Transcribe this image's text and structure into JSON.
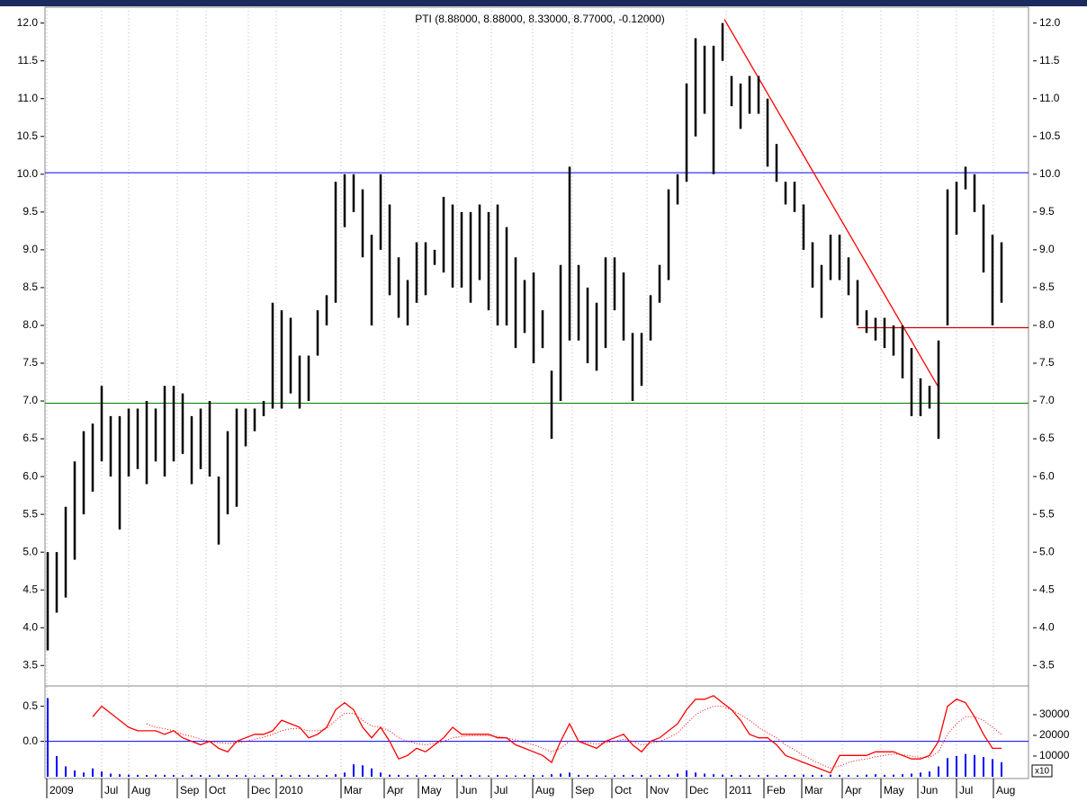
{
  "chart_data": [
    {
      "type": "ohlc",
      "title": "PTI (8.88000, 8.88000, 8.33000, 8.77000, -0.12000)",
      "high": [
        5.0,
        5.0,
        5.6,
        6.2,
        6.6,
        6.7,
        7.2,
        6.8,
        6.8,
        6.9,
        6.9,
        7.0,
        6.9,
        7.2,
        7.2,
        7.1,
        6.8,
        6.9,
        7.0,
        6.0,
        6.6,
        6.9,
        6.9,
        6.9,
        7.0,
        8.3,
        8.2,
        8.1,
        7.6,
        7.6,
        8.2,
        8.4,
        9.9,
        10.0,
        10.0,
        9.8,
        9.2,
        10.0,
        9.6,
        8.9,
        8.6,
        9.1,
        9.1,
        9.0,
        9.7,
        9.6,
        9.5,
        9.5,
        9.6,
        9.5,
        9.6,
        9.3,
        8.9,
        8.6,
        8.7,
        8.2,
        7.4,
        8.8,
        10.1,
        8.8,
        8.5,
        8.3,
        8.9,
        8.9,
        8.7,
        7.9,
        7.9,
        8.4,
        8.8,
        9.8,
        10.0,
        11.2,
        11.8,
        11.7,
        11.7,
        12.0,
        11.3,
        11.2,
        11.3,
        11.3,
        11.0,
        10.4,
        9.9,
        9.9,
        9.6,
        9.1,
        8.8,
        9.2,
        9.2,
        8.9,
        8.6,
        8.2,
        8.1,
        8.1,
        8.0,
        8.0,
        7.7,
        7.3,
        7.2,
        7.8,
        9.8,
        9.9,
        10.1,
        10.0,
        9.6,
        9.2,
        9.1
      ],
      "low": [
        3.7,
        4.2,
        4.4,
        4.9,
        5.5,
        5.8,
        6.2,
        6.0,
        5.3,
        6.0,
        6.1,
        5.9,
        6.2,
        6.0,
        6.2,
        6.3,
        5.9,
        6.1,
        6.0,
        5.1,
        5.5,
        5.6,
        6.4,
        6.6,
        6.8,
        6.9,
        6.9,
        7.1,
        6.9,
        7.0,
        7.6,
        8.0,
        8.3,
        9.3,
        9.5,
        8.9,
        8.0,
        9.0,
        8.4,
        8.1,
        8.0,
        8.3,
        8.4,
        8.8,
        8.7,
        8.5,
        8.5,
        8.3,
        8.6,
        8.2,
        8.0,
        8.0,
        7.7,
        7.9,
        7.5,
        7.7,
        6.5,
        7.0,
        7.8,
        7.8,
        7.5,
        7.4,
        7.7,
        8.2,
        7.8,
        7.0,
        7.2,
        7.8,
        8.3,
        8.6,
        9.6,
        9.9,
        10.5,
        10.8,
        10.0,
        11.5,
        10.9,
        10.6,
        10.8,
        10.8,
        10.1,
        9.9,
        9.6,
        9.5,
        9.0,
        8.5,
        8.1,
        8.6,
        8.6,
        8.4,
        8.0,
        7.9,
        7.8,
        7.7,
        7.6,
        7.3,
        6.8,
        6.8,
        6.9,
        6.5,
        8.0,
        9.2,
        9.8,
        9.5,
        8.7,
        8.0,
        8.3
      ],
      "color": "#000000",
      "xlim": [
        -0.3,
        109
      ],
      "ylim": [
        3.23,
        12.21
      ],
      "xticks": [
        {
          "value": -0.1,
          "label": "2009"
        },
        {
          "value": 6,
          "label": "Jul"
        },
        {
          "value": 9,
          "label": "Aug"
        },
        {
          "value": 14.4,
          "label": "Sep"
        },
        {
          "value": 17.6,
          "label": "Oct"
        },
        {
          "value": 22.3,
          "label": "Dec"
        },
        {
          "value": 25.4,
          "label": "2010"
        },
        {
          "value": 32.6,
          "label": "Mar"
        },
        {
          "value": 37.4,
          "label": "Apr"
        },
        {
          "value": 41.2,
          "label": "May"
        },
        {
          "value": 45.5,
          "label": "Jun"
        },
        {
          "value": 49.3,
          "label": "Jul"
        },
        {
          "value": 53.9,
          "label": "Aug"
        },
        {
          "value": 58.3,
          "label": "Sep"
        },
        {
          "value": 62.7,
          "label": "Oct"
        },
        {
          "value": 66.6,
          "label": "Nov"
        },
        {
          "value": 71,
          "label": "Dec"
        },
        {
          "value": 75.4,
          "label": "2011"
        },
        {
          "value": 79.6,
          "label": "Feb"
        },
        {
          "value": 83.8,
          "label": "Mar"
        },
        {
          "value": 88.3,
          "label": "Apr"
        },
        {
          "value": 92.6,
          "label": "May"
        },
        {
          "value": 96.7,
          "label": "Jun"
        },
        {
          "value": 101,
          "label": "Jul"
        },
        {
          "value": 105.1,
          "label": "Aug"
        }
      ],
      "yticks": [
        {
          "value": 3.5,
          "label": "3.5"
        },
        {
          "value": 4,
          "label": "4.0"
        },
        {
          "value": 4.5,
          "label": "4.5"
        },
        {
          "value": 5,
          "label": "5.0"
        },
        {
          "value": 5.5,
          "label": "5.5"
        },
        {
          "value": 6,
          "label": "6.0"
        },
        {
          "value": 6.5,
          "label": "6.5"
        },
        {
          "value": 7,
          "label": "7.0"
        },
        {
          "value": 7.5,
          "label": "7.5"
        },
        {
          "value": 8,
          "label": "8.0"
        },
        {
          "value": 8.5,
          "label": "8.5"
        },
        {
          "value": 9,
          "label": "9.0"
        },
        {
          "value": 9.5,
          "label": "9.5"
        },
        {
          "value": 10,
          "label": "10.0"
        },
        {
          "value": 10.5,
          "label": "10.5"
        },
        {
          "value": 11,
          "label": "11.0"
        },
        {
          "value": 11.5,
          "label": "11.5"
        },
        {
          "value": 12,
          "label": "12.0"
        }
      ],
      "hlines": [
        {
          "value": 10.02,
          "color": "#0000ff"
        },
        {
          "value": 6.97,
          "color": "#008000"
        }
      ],
      "segments": [
        {
          "x": [
            75.2,
            98.9
          ],
          "y": [
            12.05,
            7.2
          ],
          "color": "#ff0000"
        },
        {
          "x": [
            90,
            109
          ],
          "y": [
            7.97,
            7.97
          ],
          "color": "#cc0000"
        }
      ],
      "grid": true
    },
    {
      "type": "line",
      "series": [
        {
          "name": "osc",
          "color": "#ff0000",
          "style": "solid",
          "values": [
            null,
            null,
            null,
            null,
            null,
            0.35,
            0.5,
            0.4,
            0.3,
            0.2,
            0.15,
            0.15,
            0.15,
            0.1,
            0.15,
            0.05,
            0.0,
            -0.05,
            0.0,
            -0.1,
            -0.15,
            0.0,
            0.05,
            0.1,
            0.1,
            0.15,
            0.3,
            0.25,
            0.2,
            0.05,
            0.1,
            0.2,
            0.45,
            0.55,
            0.45,
            0.2,
            0.05,
            0.2,
            0.0,
            -0.25,
            -0.2,
            -0.1,
            -0.15,
            -0.05,
            0.05,
            0.2,
            0.1,
            0.1,
            0.1,
            0.1,
            0.05,
            0.05,
            -0.05,
            -0.1,
            -0.15,
            -0.2,
            -0.3,
            0.0,
            0.25,
            0.0,
            -0.05,
            -0.1,
            0.0,
            0.05,
            0.1,
            -0.05,
            -0.15,
            0.0,
            0.05,
            0.15,
            0.25,
            0.45,
            0.6,
            0.6,
            0.65,
            0.55,
            0.45,
            0.3,
            0.1,
            0.05,
            0.05,
            -0.05,
            -0.2,
            -0.25,
            -0.3,
            -0.35,
            -0.4,
            -0.45,
            -0.2,
            -0.2,
            -0.2,
            -0.2,
            -0.15,
            -0.15,
            -0.15,
            -0.2,
            -0.25,
            -0.25,
            -0.2,
            0.0,
            0.5,
            0.6,
            0.55,
            0.35,
            0.1,
            -0.1,
            -0.1
          ]
        },
        {
          "name": "signal",
          "color": "#ff0000",
          "style": "dotted",
          "values": [
            null,
            null,
            null,
            null,
            null,
            null,
            null,
            null,
            null,
            null,
            null,
            0.25,
            0.2,
            0.18,
            0.15,
            0.1,
            0.07,
            0.03,
            0.0,
            -0.02,
            -0.03,
            -0.02,
            0.0,
            0.03,
            0.06,
            0.1,
            0.15,
            0.18,
            0.18,
            0.15,
            0.15,
            0.18,
            0.3,
            0.4,
            0.4,
            0.3,
            0.22,
            0.2,
            0.15,
            0.05,
            0.0,
            -0.03,
            -0.05,
            -0.03,
            0.0,
            0.05,
            0.07,
            0.08,
            0.08,
            0.08,
            0.07,
            0.05,
            0.02,
            -0.02,
            -0.05,
            -0.1,
            -0.15,
            -0.1,
            0.0,
            0.0,
            -0.02,
            -0.04,
            -0.02,
            0.0,
            0.03,
            0.0,
            -0.05,
            -0.03,
            0.0,
            0.05,
            0.12,
            0.25,
            0.38,
            0.45,
            0.5,
            0.5,
            0.45,
            0.38,
            0.3,
            0.2,
            0.12,
            0.05,
            -0.05,
            -0.12,
            -0.2,
            -0.27,
            -0.33,
            -0.38,
            -0.35,
            -0.3,
            -0.27,
            -0.25,
            -0.22,
            -0.2,
            -0.18,
            -0.19,
            -0.21,
            -0.23,
            -0.23,
            -0.15,
            0.1,
            0.25,
            0.35,
            0.35,
            0.3,
            0.2,
            0.1
          ]
        },
        {
          "name": "volume",
          "color": "#0000ff",
          "style": "bar",
          "axis": "y2",
          "values": [
            38000,
            10000,
            5000,
            3000,
            2000,
            4000,
            2500,
            1500,
            1200,
            1000,
            900,
            800,
            1000,
            900,
            800,
            700,
            900,
            800,
            700,
            1000,
            900,
            800,
            700,
            600,
            700,
            800,
            900,
            700,
            800,
            900,
            700,
            800,
            1200,
            2000,
            6000,
            5500,
            4000,
            2000,
            1000,
            900,
            800,
            700,
            800,
            900,
            700,
            800,
            900,
            800,
            700,
            600,
            800,
            700,
            600,
            900,
            800,
            700,
            1200,
            1500,
            2000,
            900,
            800,
            700,
            600,
            700,
            800,
            900,
            800,
            700,
            900,
            1000,
            1500,
            3000,
            2000,
            1500,
            1200,
            1000,
            900,
            800,
            700,
            800,
            900,
            700,
            800,
            900,
            1000,
            800,
            900,
            1000,
            900,
            800,
            700,
            1000,
            1200,
            900,
            1000,
            1200,
            1500,
            2000,
            2500,
            5000,
            9000,
            10000,
            11000,
            10500,
            9500,
            8500,
            7000
          ]
        }
      ],
      "xlim": [
        -0.3,
        109
      ],
      "ylim": [
        -0.53,
        0.79
      ],
      "y2lim": [
        -870,
        43900
      ],
      "yticks": [
        {
          "value": 0.5,
          "label": "0.5"
        },
        {
          "value": 0,
          "label": "0.0"
        }
      ],
      "y2ticks": [
        30000,
        20000,
        10000
      ],
      "y2_unit_label": "x10",
      "hlines": [
        {
          "value": 0,
          "color": "#0000ff"
        }
      ]
    }
  ]
}
